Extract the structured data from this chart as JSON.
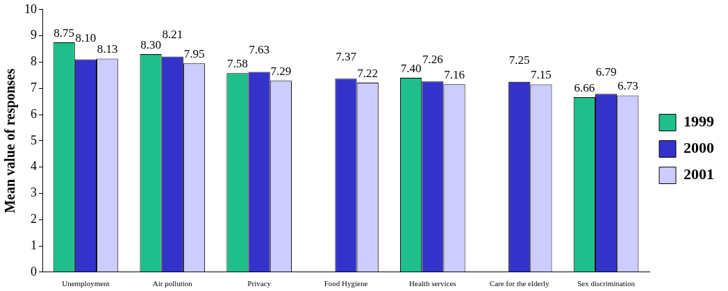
{
  "chart_data": {
    "type": "bar",
    "ylabel": "Mean value of responses",
    "categories": [
      "Unemployment",
      "Air pollution",
      "Privacy",
      "Food Hygiene",
      "Health services",
      "Care for the elderly",
      "Sex discrimination"
    ],
    "series": [
      {
        "name": "1999",
        "color": "#1fbf8c",
        "values": [
          8.75,
          8.3,
          7.58,
          null,
          7.4,
          null,
          6.66
        ],
        "value_labels": [
          "8.75",
          "8.30",
          "7.58",
          null,
          "7.40",
          null,
          "6.66"
        ]
      },
      {
        "name": "2000",
        "color": "#3333cc",
        "values": [
          8.1,
          8.21,
          7.63,
          7.37,
          7.26,
          7.25,
          6.79
        ],
        "value_labels": [
          "8.10",
          "8.21",
          "7.63",
          "7.37",
          "7.26",
          "7.25",
          "6.79"
        ]
      },
      {
        "name": "2001",
        "color": "#ccccff",
        "values": [
          8.13,
          7.95,
          7.29,
          7.22,
          7.16,
          7.15,
          6.73
        ],
        "value_labels": [
          "8.13",
          "7.95",
          "7.29",
          "7.22",
          "7.16",
          "7.15",
          "6.73"
        ]
      }
    ],
    "ylim": [
      0,
      10
    ],
    "yticks": [
      0,
      1,
      2,
      3,
      4,
      5,
      6,
      7,
      8,
      9,
      10
    ],
    "grid": false,
    "legend": "right"
  }
}
